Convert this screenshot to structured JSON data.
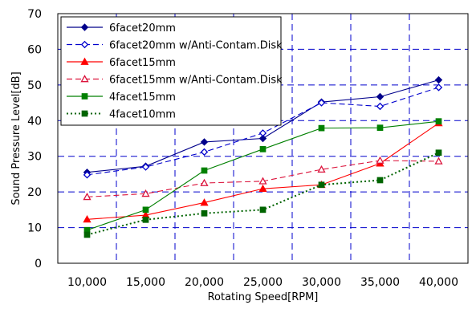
{
  "chart_data": {
    "type": "line",
    "xlabel": "Rotating Speed[RPM]",
    "ylabel": "Sound Pressure Level[dB]",
    "categories": [
      "10,000",
      "15,000",
      "20,000",
      "25,000",
      "30,000",
      "35,000",
      "40,000"
    ],
    "ylim": [
      0,
      70
    ],
    "yticks": [
      0,
      10,
      20,
      30,
      40,
      50,
      60,
      70
    ],
    "grid": true,
    "grid_style": "dashed-blue",
    "legend_position": "top-left",
    "series": [
      {
        "name": "6facet20mm",
        "values": [
          25.5,
          27.2,
          34.0,
          35.0,
          45.2,
          46.7,
          51.4
        ],
        "color": "#00008B",
        "line": "solid",
        "marker": "diamond-filled"
      },
      {
        "name": "6facet20mm w/Anti-Contam.Disk",
        "values": [
          24.8,
          27.0,
          31.2,
          36.5,
          45.0,
          44.0,
          49.3
        ],
        "color": "#0000CD",
        "line": "dashed",
        "marker": "diamond-open"
      },
      {
        "name": "6facet15mm",
        "values": [
          12.3,
          13.5,
          17.0,
          20.9,
          22.0,
          28.0,
          39.3
        ],
        "color": "#FF0000",
        "line": "solid",
        "marker": "triangle-filled"
      },
      {
        "name": "6facet15mm w/Anti-Contam.Disk",
        "values": [
          18.6,
          19.5,
          22.5,
          23.0,
          26.3,
          28.8,
          28.6
        ],
        "color": "#DC143C",
        "line": "dashed",
        "marker": "triangle-open"
      },
      {
        "name": "4facet15mm",
        "values": [
          9.3,
          15.0,
          26.0,
          32.0,
          37.9,
          38.0,
          39.8
        ],
        "color": "#008000",
        "line": "solid",
        "marker": "square-filled"
      },
      {
        "name": "4facet10mm",
        "values": [
          8.0,
          12.2,
          14.0,
          15.0,
          22.0,
          23.3,
          31.0
        ],
        "color": "#006400",
        "line": "dotted",
        "marker": "square-filled"
      }
    ]
  }
}
